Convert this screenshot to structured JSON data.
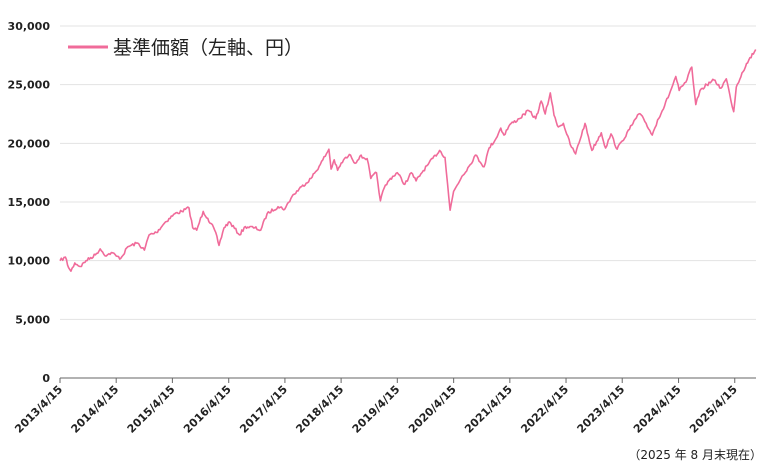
{
  "chart_data": {
    "type": "line",
    "title": "",
    "xlabel": "",
    "ylabel": "",
    "ylim": [
      0,
      30000
    ],
    "yticks": [
      "0",
      "5,000",
      "10,000",
      "15,000",
      "20,000",
      "25,000",
      "30,000"
    ],
    "ytick_values": [
      0,
      5000,
      10000,
      15000,
      20000,
      25000,
      30000
    ],
    "xlim": [
      "2013-04-15",
      "2025-08-31"
    ],
    "xticks": [
      "2013/4/15",
      "2014/4/15",
      "2015/4/15",
      "2016/4/15",
      "2017/4/15",
      "2018/4/15",
      "2019/4/15",
      "2020/4/15",
      "2021/4/15",
      "2022/4/15",
      "2023/4/15",
      "2024/4/15",
      "2025/4/15"
    ],
    "grid": true,
    "legend": {
      "placement": "top-left",
      "label": "基準価額（左軸、円）",
      "color": "#f06b9a"
    },
    "series": [
      {
        "name": "基準価額（左軸、円）",
        "color": "#f06b9a",
        "points": [
          [
            "2013-04-15",
            10000
          ],
          [
            "2013-05-20",
            10300
          ],
          [
            "2013-06-10",
            9400
          ],
          [
            "2013-06-25",
            9100
          ],
          [
            "2013-07-20",
            9800
          ],
          [
            "2013-08-25",
            9500
          ],
          [
            "2013-10-01",
            10000
          ],
          [
            "2013-12-01",
            10500
          ],
          [
            "2014-01-01",
            11000
          ],
          [
            "2014-02-10",
            10400
          ],
          [
            "2014-03-15",
            10700
          ],
          [
            "2014-04-15",
            10400
          ],
          [
            "2014-05-15",
            10200
          ],
          [
            "2014-07-01",
            11200
          ],
          [
            "2014-09-01",
            11500
          ],
          [
            "2014-10-15",
            10900
          ],
          [
            "2014-11-15",
            12200
          ],
          [
            "2015-01-01",
            12400
          ],
          [
            "2015-03-01",
            13300
          ],
          [
            "2015-05-01",
            14000
          ],
          [
            "2015-06-15",
            14200
          ],
          [
            "2015-08-01",
            14500
          ],
          [
            "2015-08-25",
            12800
          ],
          [
            "2015-09-20",
            12600
          ],
          [
            "2015-11-01",
            14200
          ],
          [
            "2015-12-01",
            13600
          ],
          [
            "2016-01-15",
            12600
          ],
          [
            "2016-02-12",
            11300
          ],
          [
            "2016-03-15",
            12800
          ],
          [
            "2016-04-20",
            13300
          ],
          [
            "2016-06-24",
            12200
          ],
          [
            "2016-08-01",
            12900
          ],
          [
            "2016-10-01",
            12800
          ],
          [
            "2016-11-09",
            12600
          ],
          [
            "2016-12-20",
            14000
          ],
          [
            "2017-03-01",
            14600
          ],
          [
            "2017-04-15",
            14400
          ],
          [
            "2017-06-01",
            15500
          ],
          [
            "2017-08-01",
            16300
          ],
          [
            "2017-10-01",
            17000
          ],
          [
            "2017-12-01",
            18200
          ],
          [
            "2018-01-26",
            19500
          ],
          [
            "2018-02-09",
            17800
          ],
          [
            "2018-03-01",
            18600
          ],
          [
            "2018-03-23",
            17700
          ],
          [
            "2018-05-01",
            18600
          ],
          [
            "2018-06-15",
            19000
          ],
          [
            "2018-07-15",
            18300
          ],
          [
            "2018-08-15",
            18900
          ],
          [
            "2018-10-01",
            18700
          ],
          [
            "2018-10-25",
            17000
          ],
          [
            "2018-12-01",
            17500
          ],
          [
            "2018-12-26",
            15100
          ],
          [
            "2019-01-20",
            16200
          ],
          [
            "2019-03-01",
            17000
          ],
          [
            "2019-04-15",
            17500
          ],
          [
            "2019-06-03",
            16500
          ],
          [
            "2019-07-15",
            17500
          ],
          [
            "2019-08-15",
            16800
          ],
          [
            "2019-09-15",
            17400
          ],
          [
            "2019-11-01",
            18200
          ],
          [
            "2020-01-15",
            19400
          ],
          [
            "2020-02-19",
            18800
          ],
          [
            "2020-03-23",
            14300
          ],
          [
            "2020-04-15",
            15900
          ],
          [
            "2020-06-08",
            17200
          ],
          [
            "2020-08-01",
            18200
          ],
          [
            "2020-09-03",
            19000
          ],
          [
            "2020-10-30",
            18000
          ],
          [
            "2020-12-01",
            19600
          ],
          [
            "2021-01-15",
            20400
          ],
          [
            "2021-02-15",
            21300
          ],
          [
            "2021-03-08",
            20700
          ],
          [
            "2021-04-15",
            21600
          ],
          [
            "2021-06-15",
            22100
          ],
          [
            "2021-08-15",
            22800
          ],
          [
            "2021-09-30",
            22100
          ],
          [
            "2021-11-05",
            23600
          ],
          [
            "2021-12-01",
            22500
          ],
          [
            "2022-01-03",
            24300
          ],
          [
            "2022-01-27",
            22400
          ],
          [
            "2022-02-24",
            21400
          ],
          [
            "2022-03-29",
            21700
          ],
          [
            "2022-05-12",
            19900
          ],
          [
            "2022-06-16",
            19100
          ],
          [
            "2022-08-16",
            21700
          ],
          [
            "2022-09-30",
            19400
          ],
          [
            "2022-11-30",
            20900
          ],
          [
            "2022-12-28",
            19600
          ],
          [
            "2023-02-01",
            20800
          ],
          [
            "2023-03-13",
            19500
          ],
          [
            "2023-04-15",
            20200
          ],
          [
            "2023-06-01",
            21200
          ],
          [
            "2023-07-31",
            22500
          ],
          [
            "2023-09-01",
            22100
          ],
          [
            "2023-10-27",
            20700
          ],
          [
            "2023-12-01",
            22000
          ],
          [
            "2024-01-15",
            23200
          ],
          [
            "2024-03-01",
            24700
          ],
          [
            "2024-03-28",
            25700
          ],
          [
            "2024-04-19",
            24500
          ],
          [
            "2024-06-01",
            25200
          ],
          [
            "2024-07-10",
            26500
          ],
          [
            "2024-08-05",
            23300
          ],
          [
            "2024-09-01",
            24500
          ],
          [
            "2024-10-15",
            25000
          ],
          [
            "2024-12-01",
            25400
          ],
          [
            "2025-01-15",
            24700
          ],
          [
            "2025-02-19",
            25500
          ],
          [
            "2025-03-13",
            24200
          ],
          [
            "2025-04-08",
            22700
          ],
          [
            "2025-04-25",
            24800
          ],
          [
            "2025-06-01",
            26000
          ],
          [
            "2025-07-15",
            27100
          ],
          [
            "2025-08-29",
            28000
          ]
        ]
      }
    ]
  },
  "footnote": "（2025 年 8 月末現在）"
}
